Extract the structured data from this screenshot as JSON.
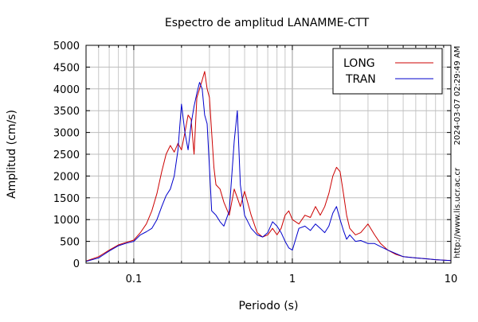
{
  "chart_data": {
    "type": "line",
    "title": "Espectro de amplitud LANAMME-CTT",
    "xlabel": "Periodo (s)",
    "ylabel": "Amplitud (cm/s)",
    "xscale": "log",
    "xlim": [
      0.05,
      10
    ],
    "ylim": [
      0,
      5000
    ],
    "x_ticks": [
      0.1,
      1,
      10
    ],
    "x_tick_labels": [
      "0.1",
      "1",
      "10"
    ],
    "y_ticks": [
      0,
      500,
      1000,
      1500,
      2000,
      2500,
      3000,
      3500,
      4000,
      4500,
      5000
    ],
    "y_tick_labels": [
      "0",
      "500",
      "1000",
      "1500",
      "2000",
      "2500",
      "3000",
      "3500",
      "4000",
      "4500",
      "5000"
    ],
    "grid": true,
    "legend_position": "top-right",
    "side_labels": {
      "timestamp": "2024-03-07 02:29:49 AM",
      "url": "http://www.lis.ucr.ac.cr"
    },
    "series": [
      {
        "name": "LONG",
        "color": "#cc0000",
        "x": [
          0.05,
          0.06,
          0.07,
          0.08,
          0.09,
          0.1,
          0.11,
          0.12,
          0.13,
          0.14,
          0.15,
          0.16,
          0.17,
          0.18,
          0.19,
          0.2,
          0.21,
          0.22,
          0.23,
          0.24,
          0.25,
          0.26,
          0.27,
          0.28,
          0.29,
          0.3,
          0.31,
          0.32,
          0.33,
          0.35,
          0.37,
          0.4,
          0.43,
          0.45,
          0.47,
          0.5,
          0.55,
          0.6,
          0.65,
          0.7,
          0.75,
          0.8,
          0.85,
          0.9,
          0.95,
          1.0,
          1.1,
          1.2,
          1.3,
          1.4,
          1.5,
          1.6,
          1.7,
          1.8,
          1.9,
          2.0,
          2.1,
          2.2,
          2.3,
          2.5,
          2.7,
          3.0,
          3.3,
          3.6,
          4.0,
          4.5,
          5.0,
          6.0,
          7.0,
          8.0,
          10.0
        ],
        "y": [
          50,
          150,
          300,
          420,
          480,
          530,
          700,
          900,
          1200,
          1600,
          2100,
          2500,
          2700,
          2550,
          2750,
          2600,
          3000,
          3400,
          3300,
          2500,
          3800,
          4000,
          4200,
          4400,
          4000,
          3800,
          3000,
          2200,
          1800,
          1700,
          1400,
          1100,
          1700,
          1500,
          1300,
          1650,
          1100,
          700,
          600,
          650,
          800,
          650,
          800,
          1100,
          1200,
          1000,
          900,
          1100,
          1050,
          1300,
          1100,
          1300,
          1600,
          2000,
          2200,
          2100,
          1600,
          1100,
          800,
          650,
          700,
          900,
          650,
          450,
          300,
          200,
          150,
          120,
          100,
          80,
          60
        ]
      },
      {
        "name": "TRAN",
        "color": "#0000cc",
        "x": [
          0.05,
          0.06,
          0.07,
          0.08,
          0.09,
          0.1,
          0.11,
          0.12,
          0.13,
          0.14,
          0.15,
          0.16,
          0.17,
          0.18,
          0.19,
          0.2,
          0.21,
          0.22,
          0.23,
          0.24,
          0.25,
          0.26,
          0.27,
          0.28,
          0.29,
          0.3,
          0.31,
          0.32,
          0.33,
          0.35,
          0.37,
          0.4,
          0.43,
          0.45,
          0.47,
          0.5,
          0.55,
          0.6,
          0.65,
          0.7,
          0.75,
          0.8,
          0.85,
          0.9,
          0.95,
          1.0,
          1.1,
          1.2,
          1.3,
          1.4,
          1.5,
          1.6,
          1.7,
          1.8,
          1.9,
          2.0,
          2.1,
          2.2,
          2.3,
          2.5,
          2.7,
          3.0,
          3.3,
          3.6,
          4.0,
          4.5,
          5.0,
          6.0,
          7.0,
          8.0,
          10.0
        ],
        "y": [
          40,
          120,
          280,
          400,
          460,
          500,
          650,
          720,
          800,
          1000,
          1300,
          1550,
          1700,
          2000,
          2600,
          3650,
          3000,
          2600,
          3200,
          3600,
          3900,
          4150,
          4000,
          3400,
          3200,
          2200,
          1200,
          1150,
          1100,
          950,
          850,
          1200,
          2800,
          3500,
          1800,
          1100,
          800,
          650,
          600,
          700,
          950,
          850,
          700,
          500,
          350,
          300,
          800,
          850,
          750,
          900,
          800,
          700,
          850,
          1150,
          1300,
          1000,
          750,
          550,
          650,
          500,
          520,
          450,
          450,
          380,
          300,
          220,
          150,
          120,
          100,
          80,
          60
        ]
      }
    ]
  }
}
